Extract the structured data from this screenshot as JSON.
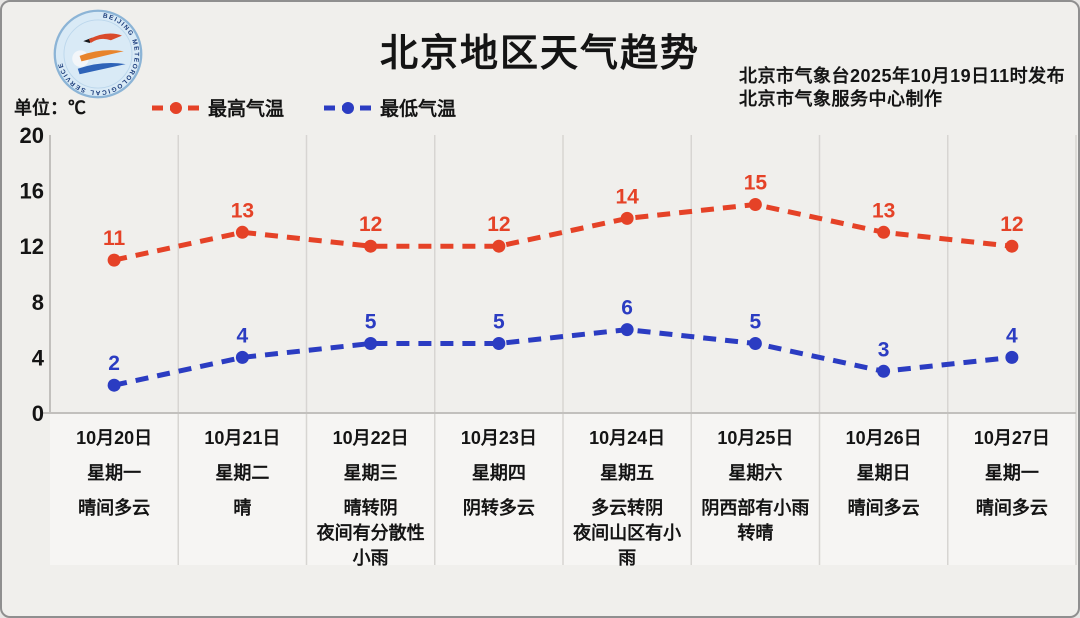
{
  "colors": {
    "background": "#f0efec",
    "frame_border": "#8f8f8f",
    "grid": "#d7d5d2",
    "axis": "#c2c0bd",
    "text": "#141414",
    "max_series": "#e54227",
    "min_series": "#2b3cc2",
    "label_area_bg": "#f6f5f3",
    "logo_bg": "#d9eaf6",
    "logo_ring": "#8cb4d6"
  },
  "header": {
    "title": "北京地区天气趋势",
    "release_line1": "北京市气象台2025年10月19日11时发布",
    "release_line2": "北京市气象服务中心制作"
  },
  "unit_label": "单位：℃",
  "logo": {
    "ring_text": "BEIJING METEOROLOGICAL SERVICE"
  },
  "chart_data": {
    "type": "line",
    "title": "北京地区天气趋势",
    "unit": "℃",
    "ylim": [
      0,
      20
    ],
    "ytick_values": [
      20,
      16,
      12,
      8,
      4,
      0
    ],
    "grid": "vertical",
    "legend_position": "top-left",
    "line_style": "dashed-with-dots",
    "categories": [
      "10月20日",
      "10月21日",
      "10月22日",
      "10月23日",
      "10月24日",
      "10月25日",
      "10月26日",
      "10月27日"
    ],
    "weekdays": [
      "星期一",
      "星期二",
      "星期三",
      "星期四",
      "星期五",
      "星期六",
      "星期日",
      "星期一"
    ],
    "weather": [
      [
        "晴间多云"
      ],
      [
        "晴"
      ],
      [
        "晴转阴",
        "夜间有分散性",
        "小雨"
      ],
      [
        "阴转多云"
      ],
      [
        "多云转阴",
        "夜间山区有小",
        "雨"
      ],
      [
        "阴西部有小雨",
        "转晴"
      ],
      [
        "晴间多云"
      ],
      [
        "晴间多云"
      ]
    ],
    "series": [
      {
        "name": "最高气温",
        "color": "#e54227",
        "values": [
          11,
          13,
          12,
          12,
          14,
          15,
          13,
          12
        ]
      },
      {
        "name": "最低气温",
        "color": "#2b3cc2",
        "values": [
          2,
          4,
          5,
          5,
          6,
          5,
          3,
          4
        ]
      }
    ],
    "annotations": [
      "北京市气象台2025年10月19日11时发布",
      "北京市气象服务中心制作",
      "单位：℃"
    ]
  }
}
